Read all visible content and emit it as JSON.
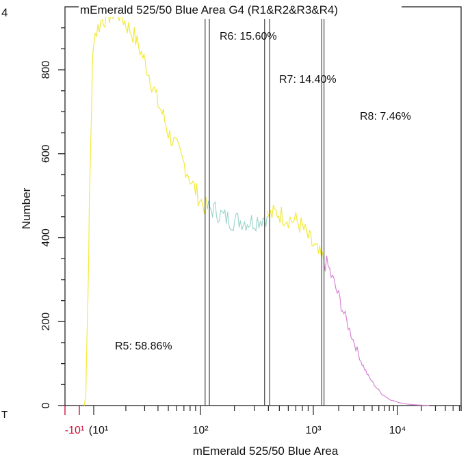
{
  "panel_marker": "4",
  "corner_mark": "T",
  "chart_data": {
    "type": "line",
    "title": "mEmerald 525/50 Blue Area  G4 (R1&R2&R3&R4)",
    "xlabel": "mEmerald 525/50 Blue Area",
    "ylabel": "Number",
    "x_scale": "log",
    "ylim": [
      0,
      950
    ],
    "y_ticks": [
      0,
      200,
      400,
      600,
      800
    ],
    "x_tick_labels": [
      {
        "x": -10,
        "label": "-10¹",
        "color": "#d0103a"
      },
      {
        "x": 10,
        "label": "(10¹",
        "color": "#111111"
      },
      {
        "x": 100,
        "label": "10²",
        "color": "#111111"
      },
      {
        "x": 1000,
        "label": "10³",
        "color": "#111111"
      },
      {
        "x": 10000,
        "label": "10⁴",
        "color": "#111111"
      }
    ],
    "regions": [
      {
        "name": "R5",
        "label": "R5: 58.86%",
        "range": [
          -3,
          115
        ],
        "color": "#f2ea3a"
      },
      {
        "name": "R6",
        "label": "R6: 15.60%",
        "range": [
          115,
          390
        ],
        "color": "#9fd6cc"
      },
      {
        "name": "R7",
        "label": "R7: 14.40%",
        "range": [
          390,
          1330
        ],
        "color": "#f2ea3a"
      },
      {
        "name": "R8",
        "label": "R8: 7.46%",
        "range": [
          1330,
          25000
        ],
        "color": "#d783d6"
      }
    ],
    "gate_lines_x": [
      110,
      120,
      370,
      410,
      1260,
      1340
    ],
    "series": [
      {
        "color": "#f2ea3a",
        "points": [
          [
            -3,
            0
          ],
          [
            -1,
            30
          ],
          [
            0,
            120
          ],
          [
            2,
            260
          ],
          [
            4,
            480
          ],
          [
            6,
            640
          ],
          [
            8,
            790
          ],
          [
            10,
            880
          ],
          [
            12,
            920
          ],
          [
            14,
            930
          ],
          [
            16,
            940
          ],
          [
            18,
            930
          ],
          [
            20,
            910
          ],
          [
            24,
            880
          ],
          [
            28,
            840
          ],
          [
            32,
            800
          ],
          [
            36,
            760
          ],
          [
            40,
            720
          ],
          [
            45,
            690
          ],
          [
            50,
            650
          ],
          [
            58,
            620
          ],
          [
            66,
            590
          ],
          [
            75,
            560
          ],
          [
            85,
            525
          ],
          [
            95,
            500
          ],
          [
            105,
            480
          ],
          [
            115,
            470
          ]
        ]
      },
      {
        "color": "#9fd6cc",
        "points": [
          [
            115,
            470
          ],
          [
            135,
            465
          ],
          [
            160,
            450
          ],
          [
            190,
            440
          ],
          [
            220,
            442
          ],
          [
            260,
            438
          ],
          [
            300,
            440
          ],
          [
            340,
            445
          ],
          [
            390,
            452
          ]
        ]
      },
      {
        "color": "#f2ea3a",
        "points": [
          [
            390,
            452
          ],
          [
            430,
            455
          ],
          [
            480,
            460
          ],
          [
            550,
            450
          ],
          [
            620,
            445
          ],
          [
            700,
            440
          ],
          [
            800,
            425
          ],
          [
            900,
            400
          ],
          [
            1000,
            380
          ],
          [
            1150,
            360
          ],
          [
            1330,
            345
          ]
        ]
      },
      {
        "color": "#d783d6",
        "points": [
          [
            1330,
            345
          ],
          [
            1500,
            330
          ],
          [
            1700,
            300
          ],
          [
            2000,
            260
          ],
          [
            2300,
            220
          ],
          [
            2700,
            180
          ],
          [
            3200,
            140
          ],
          [
            3800,
            100
          ],
          [
            4500,
            70
          ],
          [
            5500,
            45
          ],
          [
            6500,
            28
          ],
          [
            8000,
            15
          ],
          [
            10000,
            8
          ],
          [
            12500,
            4
          ],
          [
            16000,
            2
          ],
          [
            20000,
            1
          ],
          [
            25000,
            0
          ]
        ]
      }
    ]
  }
}
